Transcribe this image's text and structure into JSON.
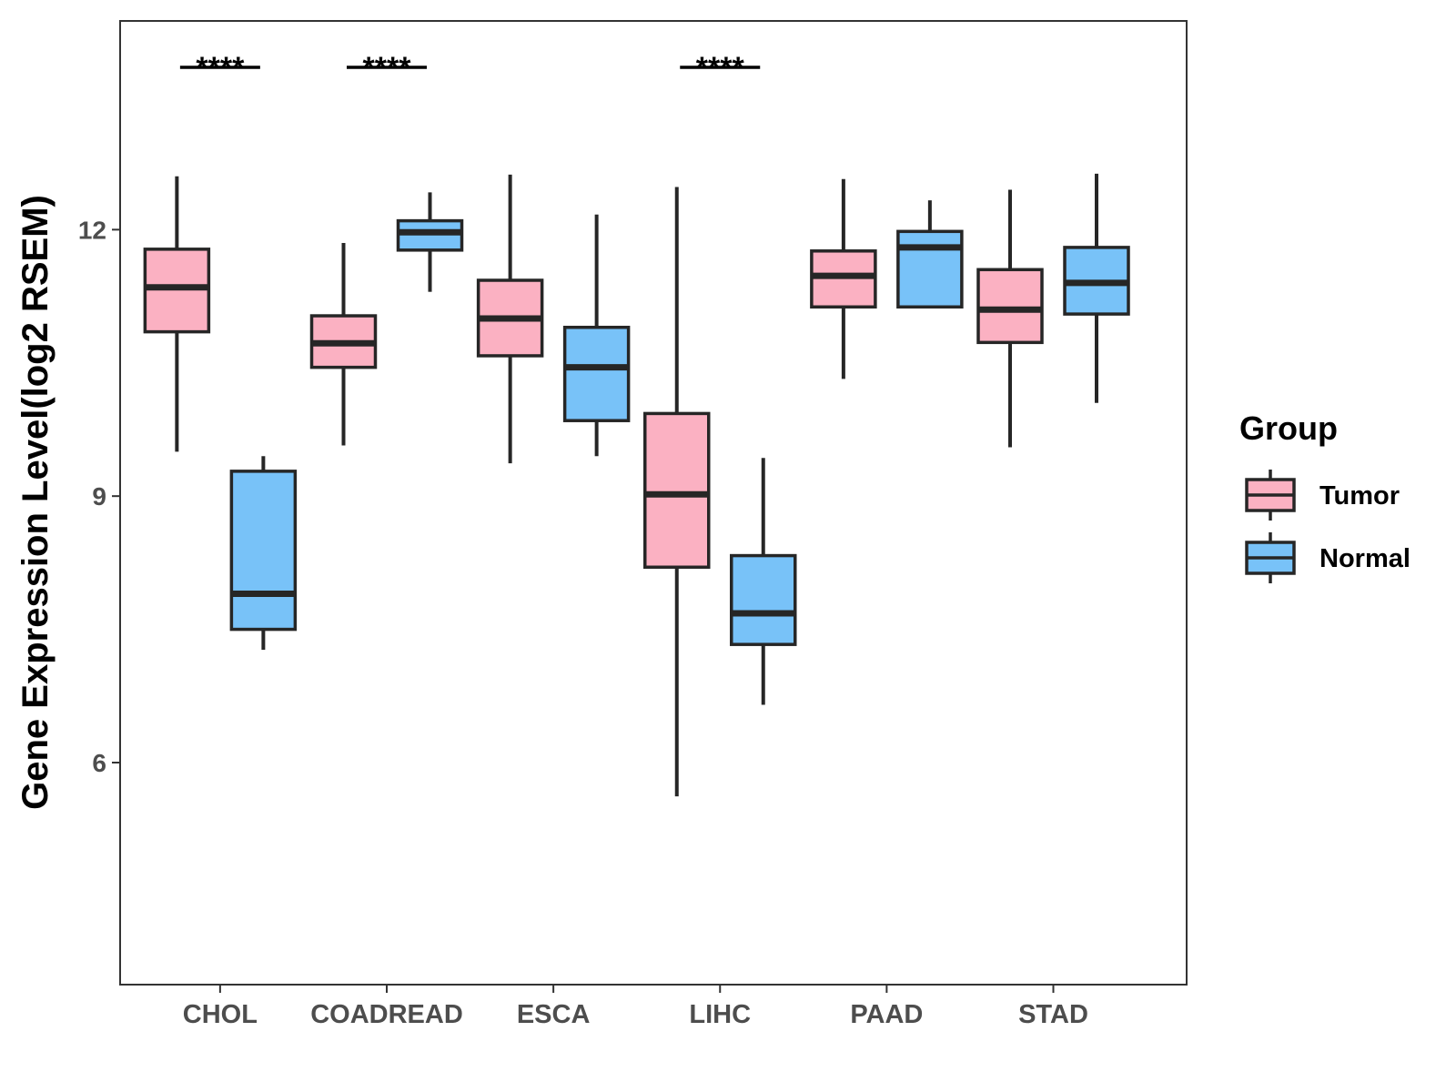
{
  "chart_data": {
    "type": "boxplot",
    "title": "",
    "xlabel": "",
    "ylabel": "Gene Expression Level(log2 RSEM)",
    "ylim": [
      3.5,
      14.35
    ],
    "yticks": [
      6,
      9,
      12
    ],
    "categories": [
      "CHOL",
      "COADREAD",
      "ESCA",
      "LIHC",
      "PAAD",
      "STAD"
    ],
    "legend": {
      "title": "Group",
      "position": "right",
      "entries": [
        {
          "name": "Tumor",
          "color": "#FBB1C2"
        },
        {
          "name": "Normal",
          "color": "#78C2F8"
        }
      ]
    },
    "series": [
      {
        "name": "Tumor",
        "color": "#FBB1C2",
        "boxes": [
          {
            "category": "CHOL",
            "min": 9.5,
            "q1": 10.85,
            "median": 11.35,
            "q3": 11.78,
            "max": 12.6
          },
          {
            "category": "COADREAD",
            "min": 9.57,
            "q1": 10.45,
            "median": 10.72,
            "q3": 11.03,
            "max": 11.85
          },
          {
            "category": "ESCA",
            "min": 9.37,
            "q1": 10.58,
            "median": 11.0,
            "q3": 11.43,
            "max": 12.62
          },
          {
            "category": "LIHC",
            "min": 5.62,
            "q1": 8.2,
            "median": 9.02,
            "q3": 9.93,
            "max": 12.48
          },
          {
            "category": "PAAD",
            "min": 10.32,
            "q1": 11.13,
            "median": 11.48,
            "q3": 11.76,
            "max": 12.57
          },
          {
            "category": "STAD",
            "min": 9.55,
            "q1": 10.73,
            "median": 11.1,
            "q3": 11.55,
            "max": 12.45
          }
        ]
      },
      {
        "name": "Normal",
        "color": "#78C2F8",
        "boxes": [
          {
            "category": "CHOL",
            "min": 7.27,
            "q1": 7.5,
            "median": 7.9,
            "q3": 9.28,
            "max": 9.45
          },
          {
            "category": "COADREAD",
            "min": 11.3,
            "q1": 11.77,
            "median": 11.97,
            "q3": 12.1,
            "max": 12.42
          },
          {
            "category": "ESCA",
            "min": 9.45,
            "q1": 9.85,
            "median": 10.45,
            "q3": 10.9,
            "max": 12.17
          },
          {
            "category": "LIHC",
            "min": 6.65,
            "q1": 7.33,
            "median": 7.68,
            "q3": 8.33,
            "max": 9.43
          },
          {
            "category": "PAAD",
            "min": null,
            "q1": 11.13,
            "median": 11.8,
            "q3": 11.98,
            "max": 12.33
          },
          {
            "category": "STAD",
            "min": 10.05,
            "q1": 11.05,
            "median": 11.4,
            "q3": 11.8,
            "max": 12.63
          }
        ]
      }
    ],
    "significance": [
      {
        "category": "CHOL",
        "label": "****"
      },
      {
        "category": "COADREAD",
        "label": "****"
      },
      {
        "category": "LIHC",
        "label": "****"
      }
    ]
  }
}
